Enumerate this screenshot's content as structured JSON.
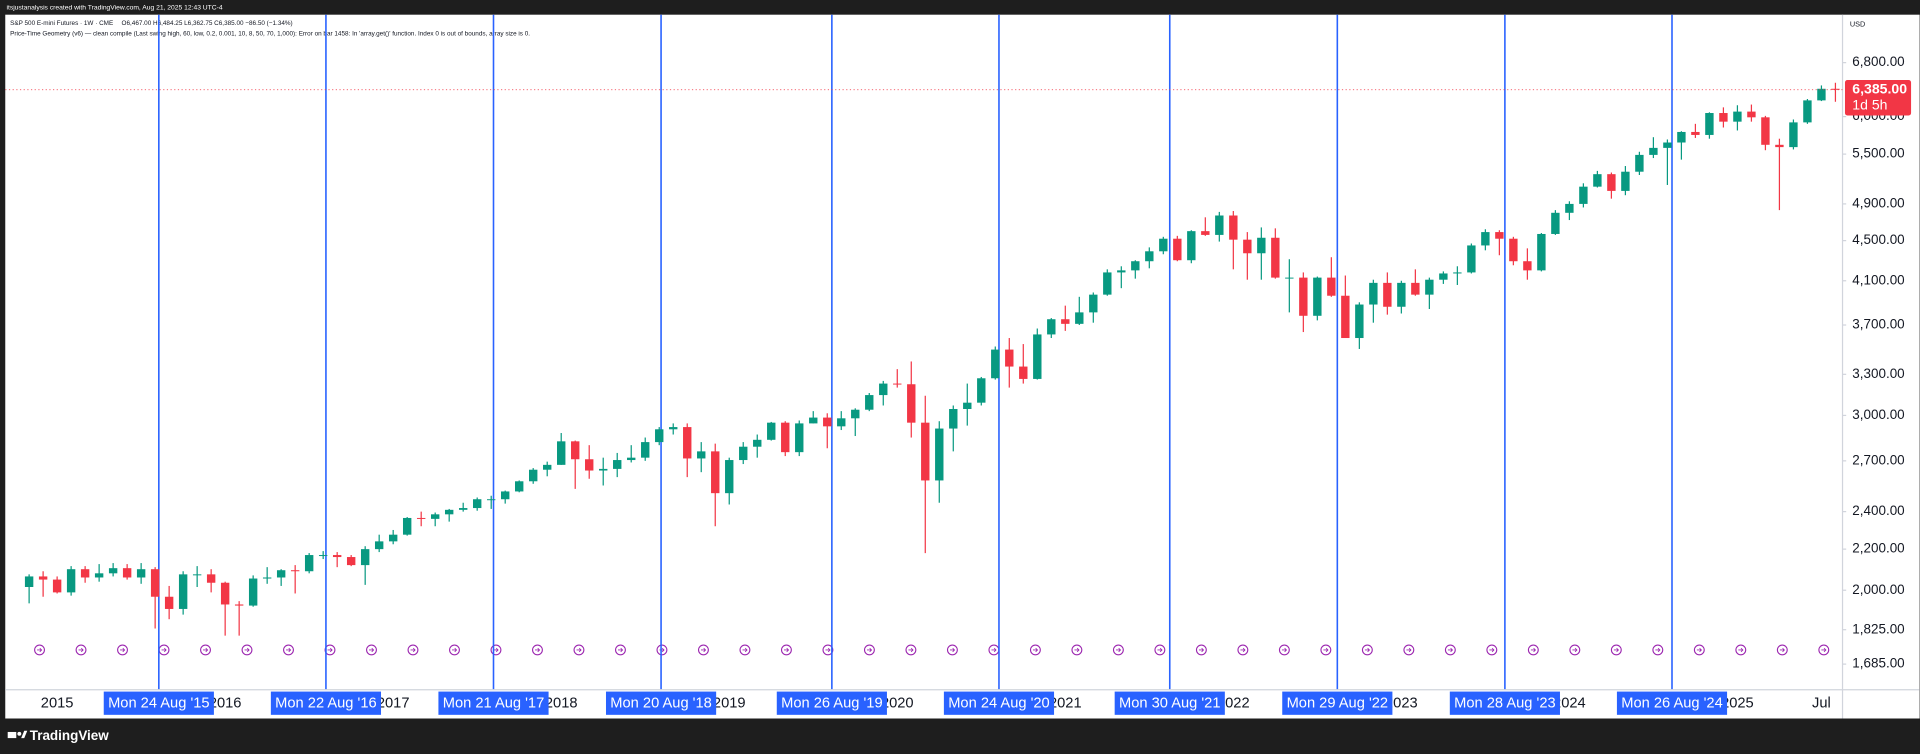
{
  "header": {
    "credit": "itsjustanalysis created with TradingView.com, Aug 21, 2025 12:43 UTC-4",
    "symbol": "S&P 500 E-mini Futures · 1W · CME",
    "ohlc": "O6,467.00 H6,484.25 L6,362.75 C6,385.00 −86.50 (−1.34%)",
    "indicator": "Price-Time Geometry (v6) — clean compile (Last swing high, 60, low, 0.2, 0.001, 10, 8, 50, 70, 1,000): Error on bar 1458: In 'array.get()' function. Index 0 is out of bounds, array size is 0."
  },
  "footer": {
    "brand": "TradingView"
  },
  "chart_data": {
    "type": "candlestick",
    "currency": "USD",
    "log_scale": true,
    "up_color": "#089981",
    "down_color": "#f23645",
    "vline_color": "#2962ff",
    "xlim": [
      "2014-09-25",
      "2025-09-01"
    ],
    "ylim": [
      1590,
      7600
    ],
    "yticks": [
      {
        "value": 1685,
        "label": "1,685.00"
      },
      {
        "value": 1825,
        "label": "1,825.00"
      },
      {
        "value": 2000,
        "label": "2,000.00"
      },
      {
        "value": 2200,
        "label": "2,200.00"
      },
      {
        "value": 2400,
        "label": "2,400.00"
      },
      {
        "value": 2700,
        "label": "2,700.00"
      },
      {
        "value": 3000,
        "label": "3,000.00"
      },
      {
        "value": 3300,
        "label": "3,300.00"
      },
      {
        "value": 3700,
        "label": "3,700.00"
      },
      {
        "value": 4100,
        "label": "4,100.00"
      },
      {
        "value": 4500,
        "label": "4,500.00"
      },
      {
        "value": 4900,
        "label": "4,900.00"
      },
      {
        "value": 5500,
        "label": "5,500.00"
      },
      {
        "value": 6000,
        "label": "6,000.00"
      },
      {
        "value": 6800,
        "label": "6,800.00"
      }
    ],
    "xticks": [
      {
        "value": "2015-01",
        "label": "2015"
      },
      {
        "value": "2016-01",
        "label": "2016"
      },
      {
        "value": "2017-01",
        "label": "2017"
      },
      {
        "value": "2018-01",
        "label": "2018"
      },
      {
        "value": "2019-01",
        "label": "2019"
      },
      {
        "value": "2020-01",
        "label": "2020"
      },
      {
        "value": "2021-01",
        "label": "2021"
      },
      {
        "value": "2022-01",
        "label": "2022"
      },
      {
        "value": "2023-01",
        "label": "2023"
      },
      {
        "value": "2024-01",
        "label": "2024"
      },
      {
        "value": "2025-01",
        "label": "2025"
      },
      {
        "value": "2025-07",
        "label": "Jul"
      }
    ],
    "vlines": [
      {
        "x": "2015-08-24",
        "label": "Mon 24 Aug '15"
      },
      {
        "x": "2016-08-22",
        "label": "Mon 22 Aug '16"
      },
      {
        "x": "2017-08-21",
        "label": "Mon 21 Aug '17"
      },
      {
        "x": "2018-08-20",
        "label": "Mon 20 Aug '18"
      },
      {
        "x": "2019-08-26",
        "label": "Mon 26 Aug '19"
      },
      {
        "x": "2020-08-24",
        "label": "Mon 24 Aug '20"
      },
      {
        "x": "2021-08-30",
        "label": "Mon 30 Aug '21"
      },
      {
        "x": "2022-08-29",
        "label": "Mon 29 Aug '22"
      },
      {
        "x": "2023-08-28",
        "label": "Mon 28 Aug '23"
      },
      {
        "x": "2024-08-26",
        "label": "Mon 26 Aug '24"
      }
    ],
    "last_price": {
      "value": 6385,
      "label": "6,385.00"
    },
    "countdown": "1d 5h",
    "x": [
      "2014-11",
      "2014-12",
      "2015-01",
      "2015-02",
      "2015-03",
      "2015-04",
      "2015-05",
      "2015-06",
      "2015-07",
      "2015-08",
      "2015-09",
      "2015-10",
      "2015-11",
      "2015-12",
      "2016-01",
      "2016-02",
      "2016-03",
      "2016-04",
      "2016-05",
      "2016-06",
      "2016-07",
      "2016-08",
      "2016-09",
      "2016-10",
      "2016-11",
      "2016-12",
      "2017-01",
      "2017-02",
      "2017-03",
      "2017-04",
      "2017-05",
      "2017-06",
      "2017-07",
      "2017-08",
      "2017-09",
      "2017-10",
      "2017-11",
      "2017-12",
      "2018-01",
      "2018-02",
      "2018-03",
      "2018-04",
      "2018-05",
      "2018-06",
      "2018-07",
      "2018-08",
      "2018-09",
      "2018-10",
      "2018-11",
      "2018-12",
      "2019-01",
      "2019-02",
      "2019-03",
      "2019-04",
      "2019-05",
      "2019-06",
      "2019-07",
      "2019-08",
      "2019-09",
      "2019-10",
      "2019-11",
      "2019-12",
      "2020-01",
      "2020-02",
      "2020-03",
      "2020-04",
      "2020-05",
      "2020-06",
      "2020-07",
      "2020-08",
      "2020-09",
      "2020-10",
      "2020-11",
      "2020-12",
      "2021-01",
      "2021-02",
      "2021-03",
      "2021-04",
      "2021-05",
      "2021-06",
      "2021-07",
      "2021-08",
      "2021-09",
      "2021-10",
      "2021-11",
      "2021-12",
      "2022-01",
      "2022-02",
      "2022-03",
      "2022-04",
      "2022-05",
      "2022-06",
      "2022-07",
      "2022-08",
      "2022-09",
      "2022-10",
      "2022-11",
      "2022-12",
      "2023-01",
      "2023-02",
      "2023-03",
      "2023-04",
      "2023-05",
      "2023-06",
      "2023-07",
      "2023-08",
      "2023-09",
      "2023-10",
      "2023-11",
      "2023-12",
      "2024-01",
      "2024-02",
      "2024-03",
      "2024-04",
      "2024-05",
      "2024-06",
      "2024-07",
      "2024-08",
      "2024-09",
      "2024-10",
      "2024-11",
      "2024-12",
      "2025-01",
      "2025-02",
      "2025-03",
      "2025-04",
      "2025-05",
      "2025-06",
      "2025-07",
      "2025-08"
    ],
    "open": [
      2015,
      2065,
      2050,
      1990,
      2100,
      2060,
      2080,
      2105,
      2060,
      2100,
      1970,
      1915,
      2075,
      2075,
      2035,
      1935,
      1930,
      2055,
      2060,
      2095,
      2090,
      2170,
      2170,
      2160,
      2120,
      2200,
      2240,
      2275,
      2365,
      2360,
      2385,
      2410,
      2420,
      2470,
      2470,
      2515,
      2575,
      2645,
      2675,
      2825,
      2710,
      2640,
      2650,
      2705,
      2720,
      2820,
      2905,
      2920,
      2715,
      2760,
      2505,
      2705,
      2790,
      2835,
      2950,
      2755,
      2945,
      2985,
      2925,
      2980,
      3040,
      3145,
      3230,
      3225,
      2950,
      2580,
      2910,
      3045,
      3090,
      3270,
      3495,
      3360,
      3265,
      3620,
      3750,
      3710,
      3810,
      3970,
      4180,
      4200,
      4290,
      4390,
      4520,
      4300,
      4600,
      4560,
      4770,
      4510,
      4370,
      4530,
      4130,
      4130,
      3780,
      4130,
      3960,
      3590,
      3880,
      4080,
      3860,
      4080,
      3970,
      4110,
      4170,
      4180,
      4450,
      4590,
      4520,
      4290,
      4200,
      4570,
      4800,
      4900,
      5100,
      5250,
      5050,
      5280,
      5490,
      5580,
      5650,
      5790,
      5750,
      6050,
      5930,
      6070,
      5990,
      5620,
      5590,
      5920,
      6230,
      6400
    ],
    "high": [
      2075,
      2090,
      2065,
      2115,
      2115,
      2125,
      2130,
      2125,
      2130,
      2110,
      2020,
      2090,
      2115,
      2100,
      2040,
      1950,
      2070,
      2110,
      2100,
      2120,
      2180,
      2190,
      2185,
      2170,
      2215,
      2275,
      2300,
      2370,
      2400,
      2395,
      2415,
      2450,
      2480,
      2490,
      2520,
      2580,
      2655,
      2695,
      2880,
      2830,
      2800,
      2720,
      2750,
      2800,
      2850,
      2920,
      2945,
      2945,
      2820,
      2810,
      2720,
      2820,
      2870,
      2955,
      2960,
      2965,
      3030,
      3015,
      3030,
      3050,
      3160,
      3250,
      3340,
      3400,
      3140,
      2960,
      3070,
      3230,
      3280,
      3520,
      3590,
      3540,
      3670,
      3760,
      3870,
      3950,
      3990,
      4210,
      4240,
      4300,
      4430,
      4540,
      4550,
      4610,
      4750,
      4810,
      4820,
      4590,
      4640,
      4630,
      4310,
      4180,
      4140,
      4330,
      4150,
      3900,
      4110,
      4180,
      4100,
      4210,
      4130,
      4190,
      4240,
      4470,
      4620,
      4610,
      4540,
      4420,
      4580,
      4830,
      4930,
      5140,
      5290,
      5270,
      5350,
      5530,
      5720,
      5690,
      5800,
      5900,
      6060,
      6130,
      6160,
      6170,
      6010,
      5700,
      5960,
      6250,
      6450,
      6490
    ],
    "low": [
      1940,
      1970,
      1985,
      1975,
      2035,
      2040,
      2065,
      2050,
      2030,
      1830,
      1870,
      1890,
      2015,
      1990,
      1800,
      1800,
      1925,
      2030,
      2020,
      1985,
      2080,
      2150,
      2110,
      2115,
      2025,
      2185,
      2225,
      2270,
      2320,
      2320,
      2345,
      2400,
      2405,
      2415,
      2445,
      2510,
      2560,
      2605,
      2675,
      2530,
      2590,
      2550,
      2600,
      2690,
      2700,
      2800,
      2870,
      2600,
      2630,
      2320,
      2440,
      2680,
      2720,
      2830,
      2730,
      2730,
      2945,
      2780,
      2900,
      2860,
      3030,
      3070,
      3200,
      2850,
      2180,
      2450,
      2760,
      2930,
      3070,
      3260,
      3200,
      3230,
      3260,
      3590,
      3650,
      3700,
      3720,
      3960,
      4030,
      4120,
      4220,
      4360,
      4290,
      4270,
      4550,
      4490,
      4210,
      4110,
      4110,
      4120,
      3810,
      3640,
      3740,
      3950,
      3600,
      3500,
      3720,
      3790,
      3800,
      3960,
      3840,
      4070,
      4060,
      4170,
      4400,
      4350,
      4250,
      4110,
      4190,
      4560,
      4720,
      4860,
      5090,
      4960,
      5000,
      5240,
      5450,
      5120,
      5430,
      5710,
      5700,
      5850,
      5810,
      5930,
      5550,
      4830,
      5560,
      5900,
      6220,
      6210
    ],
    "close": [
      2065,
      2050,
      1990,
      2100,
      2060,
      2080,
      2105,
      2060,
      2100,
      1970,
      1915,
      2075,
      2075,
      2035,
      1935,
      1930,
      2055,
      2060,
      2095,
      2090,
      2170,
      2170,
      2160,
      2120,
      2200,
      2240,
      2275,
      2365,
      2360,
      2385,
      2410,
      2420,
      2470,
      2470,
      2515,
      2575,
      2645,
      2675,
      2825,
      2710,
      2640,
      2650,
      2705,
      2720,
      2820,
      2905,
      2920,
      2715,
      2760,
      2505,
      2705,
      2790,
      2835,
      2950,
      2755,
      2945,
      2985,
      2925,
      2980,
      3040,
      3145,
      3230,
      3225,
      2950,
      2580,
      2910,
      3045,
      3090,
      3270,
      3495,
      3360,
      3265,
      3620,
      3750,
      3710,
      3810,
      3970,
      4180,
      4200,
      4290,
      4390,
      4520,
      4300,
      4600,
      4560,
      4770,
      4510,
      4370,
      4530,
      4130,
      4130,
      3780,
      4130,
      3960,
      3590,
      3880,
      4080,
      3860,
      4080,
      3970,
      4110,
      4170,
      4180,
      4450,
      4590,
      4520,
      4290,
      4200,
      4570,
      4800,
      4900,
      5100,
      5250,
      5050,
      5280,
      5490,
      5580,
      5650,
      5790,
      5750,
      6050,
      5930,
      6070,
      5990,
      5620,
      5590,
      5920,
      6230,
      6400,
      6385
    ]
  }
}
